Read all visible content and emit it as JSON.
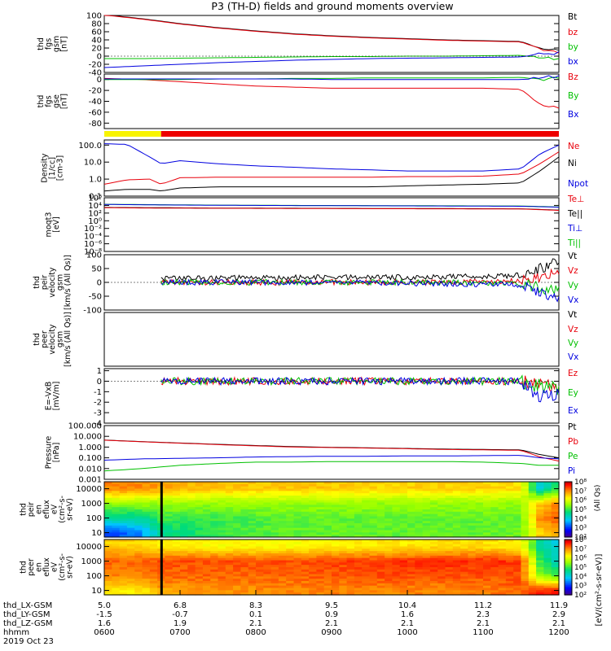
{
  "title": "P3 (TH-D) fields and ground moments overview",
  "chart_data": [
    {
      "type": "line",
      "panel": "fgs-gsm",
      "ylabel": [
        "thd",
        "fgs",
        "gsm",
        "[nT]"
      ],
      "ylim": [
        -40,
        100
      ],
      "yticks": [
        -40,
        -20,
        0,
        20,
        40,
        60,
        80,
        100
      ],
      "legend": [
        {
          "name": "Bt",
          "color": "#000000"
        },
        {
          "name": "bz",
          "color": "#e8000b"
        },
        {
          "name": "by",
          "color": "#00c000"
        },
        {
          "name": "bx",
          "color": "#0000e0"
        }
      ],
      "x": [
        6.0,
        6.5,
        7.0,
        7.5,
        8.0,
        8.5,
        9.0,
        9.5,
        10.0,
        10.5,
        11.0,
        11.5,
        11.75,
        12.0
      ],
      "series": [
        {
          "name": "Bt",
          "values": [
            102,
            92,
            80,
            70,
            62,
            55,
            50,
            46,
            43,
            40,
            38,
            36,
            20,
            12
          ]
        },
        {
          "name": "bz",
          "values": [
            101,
            91,
            79,
            69,
            61,
            54,
            49,
            45,
            42,
            39,
            37,
            35,
            18,
            10
          ]
        },
        {
          "name": "by",
          "values": [
            -6,
            -6,
            -5,
            -4,
            -3,
            -2,
            -1,
            -1,
            0,
            0,
            1,
            2,
            -5,
            -8
          ]
        },
        {
          "name": "bx",
          "values": [
            -28,
            -24,
            -20,
            -16,
            -13,
            -10,
            -8,
            -6,
            -5,
            -4,
            -3,
            -2,
            5,
            8
          ]
        }
      ]
    },
    {
      "type": "line",
      "panel": "fgs-gse",
      "ylabel": [
        "thd",
        "fgs",
        "gse",
        "[nT]"
      ],
      "ylim": [
        -90,
        10
      ],
      "yticks": [
        -80,
        -60,
        -40,
        -20,
        0
      ],
      "legend": [
        {
          "name": "Bz",
          "color": "#e8000b"
        },
        {
          "name": "By",
          "color": "#00c000"
        },
        {
          "name": "Bx",
          "color": "#0000e0"
        }
      ],
      "x": [
        6.0,
        6.5,
        7.0,
        7.5,
        8.0,
        8.5,
        9.0,
        9.5,
        10.0,
        10.5,
        11.0,
        11.5,
        11.75,
        12.0
      ],
      "series": [
        {
          "name": "Bz",
          "values": [
            2,
            0,
            -4,
            -8,
            -12,
            -14,
            -16,
            -16,
            -16,
            -16,
            -16,
            -18,
            -45,
            -55
          ]
        },
        {
          "name": "By",
          "values": [
            0,
            0,
            0,
            1,
            1,
            2,
            2,
            3,
            3,
            3,
            3,
            4,
            0,
            5
          ]
        },
        {
          "name": "Bx",
          "values": [
            1,
            1,
            1,
            1,
            1,
            1,
            0,
            0,
            0,
            0,
            0,
            0,
            2,
            5
          ]
        }
      ]
    },
    {
      "type": "bar",
      "panel": "mode-bar",
      "segments": [
        {
          "from": 6.0,
          "to": 6.75,
          "color": "#f8f400"
        },
        {
          "from": 6.75,
          "to": 12.0,
          "color": "#ee0000"
        }
      ]
    },
    {
      "type": "line",
      "panel": "density",
      "scale": "log",
      "ylabel": [
        "Density",
        "[1/cc]",
        "[cm-3]"
      ],
      "yticklabels": [
        "0.1",
        "1.0",
        "10.0",
        "100.0"
      ],
      "yticks": [
        0.1,
        1,
        10,
        100
      ],
      "ylim": [
        0.1,
        200
      ],
      "legend": [
        {
          "name": "Ne",
          "color": "#e8000b"
        },
        {
          "name": "Ni",
          "color": "#000000"
        },
        {
          "name": "Npot",
          "color": "#0000e0"
        }
      ],
      "x": [
        6.0,
        6.3,
        6.6,
        6.75,
        7.0,
        7.5,
        8.0,
        8.5,
        9.0,
        9.5,
        10.0,
        10.5,
        11.0,
        11.5,
        11.75,
        12.0
      ],
      "series": [
        {
          "name": "Npot",
          "values": [
            120,
            110,
            20,
            8,
            12,
            8,
            6,
            5,
            4,
            3.5,
            3,
            3,
            3,
            4,
            30,
            100
          ]
        },
        {
          "name": "Ne",
          "values": [
            0.5,
            0.9,
            1.0,
            0.5,
            1.2,
            1.3,
            1.3,
            1.3,
            1.3,
            1.3,
            1.4,
            1.4,
            1.5,
            2,
            8,
            40
          ]
        },
        {
          "name": "Ni",
          "values": [
            0.2,
            0.25,
            0.25,
            0.2,
            0.3,
            0.35,
            0.35,
            0.35,
            0.35,
            0.35,
            0.4,
            0.45,
            0.5,
            0.6,
            3,
            20
          ]
        }
      ]
    },
    {
      "type": "line",
      "panel": "temperature",
      "scale": "log",
      "ylabel": [
        "moqt3",
        "[eV]"
      ],
      "yticklabels": [
        "10⁶",
        "10⁴",
        "10²",
        "10⁰",
        "10⁻²",
        "10⁻⁴",
        "10⁻⁶",
        "10⁻⁸"
      ],
      "yticks": [
        1000000,
        10000,
        100,
        1,
        0.01,
        0.0001,
        1e-06,
        1e-08
      ],
      "ylim": [
        1e-08,
        1000000
      ],
      "legend": [
        {
          "name": "Te⊥",
          "color": "#e8000b"
        },
        {
          "name": "Te||",
          "color": "#000000"
        },
        {
          "name": "Ti⊥",
          "color": "#0000e0"
        },
        {
          "name": "Ti||",
          "color": "#00c000"
        }
      ],
      "x": [
        6.0,
        6.75,
        7.5,
        8.5,
        9.5,
        10.5,
        11.5,
        12.0
      ],
      "series": [
        {
          "name": "Ti||",
          "values": [
            20000,
            15000,
            12000,
            10000,
            9000,
            8000,
            7000,
            4000
          ]
        },
        {
          "name": "Ti⊥",
          "values": [
            18000,
            13000,
            11000,
            9000,
            8000,
            7000,
            6000,
            3500
          ]
        },
        {
          "name": "Te||",
          "values": [
            3000,
            2500,
            2000,
            1800,
            1600,
            1500,
            1300,
            600
          ]
        },
        {
          "name": "Te⊥",
          "values": [
            2500,
            2000,
            1800,
            1600,
            1400,
            1300,
            1200,
            500
          ]
        }
      ]
    },
    {
      "type": "line",
      "panel": "peir-velocity",
      "ylabel": [
        "thd",
        "peir",
        "velocity",
        "gsm",
        "[km/s (All Qs)]"
      ],
      "ylim": [
        -100,
        100
      ],
      "yticks": [
        -100,
        -50,
        0,
        50,
        100
      ],
      "legend": [
        {
          "name": "Vt",
          "color": "#000000"
        },
        {
          "name": "Vz",
          "color": "#e8000b"
        },
        {
          "name": "Vy",
          "color": "#00c000"
        },
        {
          "name": "Vx",
          "color": "#0000e0"
        }
      ],
      "x": [
        6.75,
        7.5,
        8.5,
        9.5,
        10.5,
        11.5,
        11.75,
        12.0
      ],
      "series": [
        {
          "name": "Vt",
          "values": [
            15,
            15,
            17,
            18,
            20,
            25,
            50,
            80
          ]
        },
        {
          "name": "Vz",
          "values": [
            0,
            0,
            0,
            0,
            0,
            5,
            20,
            30
          ]
        },
        {
          "name": "Vy",
          "values": [
            0,
            0,
            0,
            0,
            0,
            -5,
            -20,
            -30
          ]
        },
        {
          "name": "Vx",
          "values": [
            0,
            0,
            0,
            0,
            -5,
            -10,
            -40,
            -60
          ]
        }
      ]
    },
    {
      "type": "line",
      "panel": "peer-velocity",
      "ylabel": [
        "thd",
        "peer",
        "velocity",
        "gsm",
        "[km/s (All Qs)]"
      ],
      "legend": [
        {
          "name": "Vt",
          "color": "#000000"
        },
        {
          "name": "Vz",
          "color": "#e8000b"
        },
        {
          "name": "Vy",
          "color": "#00c000"
        },
        {
          "name": "Vx",
          "color": "#0000e0"
        }
      ],
      "series": []
    },
    {
      "type": "line",
      "panel": "e-field",
      "ylabel": [
        "E=-VxB",
        "[mV/m]"
      ],
      "ylim": [
        -4,
        1.2
      ],
      "yticks": [
        -4,
        -3,
        -2,
        -1,
        0,
        1
      ],
      "legend": [
        {
          "name": "Ez",
          "color": "#e8000b"
        },
        {
          "name": "Ey",
          "color": "#00c000"
        },
        {
          "name": "Ex",
          "color": "#0000e0"
        }
      ],
      "x": [
        6.75,
        7.5,
        8.5,
        9.5,
        10.5,
        11.5,
        11.75,
        12.0
      ],
      "series": [
        {
          "name": "Ez",
          "values": [
            0,
            0,
            0,
            0,
            0,
            0,
            -0.3,
            -0.5
          ]
        },
        {
          "name": "Ey",
          "values": [
            0,
            0,
            0,
            0,
            0,
            0,
            -0.5,
            -0.8
          ]
        },
        {
          "name": "Ex",
          "values": [
            0,
            0,
            0,
            0,
            0,
            0,
            -1.5,
            -1.0
          ]
        }
      ]
    },
    {
      "type": "line",
      "panel": "pressure",
      "scale": "log",
      "ylabel": [
        "Pressure",
        "[nPa]"
      ],
      "yticklabels": [
        "0.001",
        "0.010",
        "0.100",
        "1.000",
        "10.000",
        "100.000"
      ],
      "yticks": [
        0.001,
        0.01,
        0.1,
        1,
        10,
        100
      ],
      "ylim": [
        0.001,
        100
      ],
      "legend": [
        {
          "name": "Pt",
          "color": "#000000"
        },
        {
          "name": "Pb",
          "color": "#e8000b"
        },
        {
          "name": "Pe",
          "color": "#00c000"
        },
        {
          "name": "Pi",
          "color": "#0000e0"
        }
      ],
      "x": [
        6.0,
        6.5,
        7.0,
        7.5,
        8.0,
        8.5,
        9.0,
        9.5,
        10.0,
        10.5,
        11.0,
        11.5,
        11.75,
        12.0
      ],
      "series": [
        {
          "name": "Pt",
          "values": [
            4.5,
            3.2,
            2.4,
            1.8,
            1.4,
            1.1,
            0.95,
            0.85,
            0.75,
            0.65,
            0.6,
            0.55,
            0.2,
            0.1
          ]
        },
        {
          "name": "Pb",
          "values": [
            4.4,
            3.1,
            2.3,
            1.7,
            1.3,
            1.0,
            0.9,
            0.8,
            0.7,
            0.6,
            0.55,
            0.5,
            0.12,
            0.05
          ]
        },
        {
          "name": "Pe",
          "values": [
            0.006,
            0.01,
            0.02,
            0.03,
            0.04,
            0.04,
            0.045,
            0.045,
            0.045,
            0.045,
            0.04,
            0.03,
            0.02,
            0.02
          ]
        },
        {
          "name": "Pi",
          "values": [
            0.06,
            0.08,
            0.09,
            0.1,
            0.12,
            0.13,
            0.14,
            0.14,
            0.15,
            0.15,
            0.16,
            0.17,
            0.1,
            0.08
          ]
        }
      ]
    },
    {
      "type": "heatmap",
      "panel": "peir-eflux",
      "scale": "log",
      "ylabel": [
        "thd",
        "peir",
        "en",
        "eflux",
        "eV",
        "(cm²-s-",
        "sr-eV)"
      ],
      "yticks": [
        10,
        100,
        1000,
        10000
      ],
      "yticklabels": [
        "10",
        "100",
        "1000",
        "10000"
      ],
      "ylim": [
        5,
        30000
      ],
      "colorbar": {
        "ticklabels": [
          "10²",
          "10³",
          "10⁴",
          "10⁵",
          "10⁶",
          "10⁷",
          "10⁸"
        ],
        "range": [
          100,
          100000000
        ]
      },
      "x": [
        6.0,
        6.5,
        6.75,
        7.5,
        8.5,
        9.5,
        10.5,
        11.0,
        11.5,
        11.75,
        12.0
      ],
      "bands": [
        {
          "energy": 10000,
          "values": [
            7.0,
            7.0,
            6.8,
            6.6,
            6.6,
            6.5,
            6.5,
            6.5,
            6.4,
            4.0,
            5.0
          ]
        },
        {
          "energy": 1000,
          "values": [
            5.5,
            5.5,
            5.5,
            5.5,
            5.5,
            5.5,
            5.5,
            5.5,
            5.5,
            6.5,
            7.0
          ]
        },
        {
          "energy": 100,
          "values": [
            4.5,
            4.5,
            5.0,
            5.0,
            5.2,
            5.2,
            5.2,
            5.2,
            5.2,
            7.0,
            7.2
          ]
        },
        {
          "energy": 10,
          "values": [
            3.0,
            3.5,
            4.5,
            5.0,
            5.2,
            5.2,
            5.2,
            5.2,
            5.3,
            6.5,
            6.8
          ]
        }
      ]
    },
    {
      "type": "heatmap",
      "panel": "peer-eflux",
      "scale": "log",
      "ylabel": [
        "thd",
        "peer",
        "en",
        "eflux",
        "eV",
        "(cm²-s-",
        "sr-eV)"
      ],
      "yticks": [
        10,
        100,
        1000,
        10000
      ],
      "yticklabels": [
        "10",
        "100",
        "1000",
        "10000"
      ],
      "ylim": [
        5,
        30000
      ],
      "colorbar": {
        "ticklabels": [
          "10²",
          "10³",
          "10⁴",
          "10⁵",
          "10⁶",
          "10⁷",
          "10⁸"
        ],
        "range": [
          100,
          100000000
        ]
      },
      "x": [
        6.0,
        6.5,
        6.75,
        7.5,
        8.5,
        9.5,
        10.5,
        11.0,
        11.5,
        11.75,
        12.0
      ],
      "bands": [
        {
          "energy": 10000,
          "values": [
            6.5,
            6.5,
            6.3,
            6.2,
            6.2,
            6.3,
            6.4,
            6.4,
            6.3,
            4.5,
            4.0
          ]
        },
        {
          "energy": 1000,
          "values": [
            7.2,
            7.2,
            7.3,
            7.3,
            7.3,
            7.4,
            7.5,
            7.5,
            7.4,
            5.0,
            4.0
          ]
        },
        {
          "energy": 100,
          "values": [
            7.0,
            7.0,
            7.2,
            7.2,
            7.2,
            7.3,
            7.3,
            7.3,
            7.3,
            5.5,
            5.0
          ]
        },
        {
          "energy": 10,
          "values": [
            6.3,
            6.3,
            6.8,
            6.9,
            7.0,
            7.0,
            7.0,
            7.0,
            7.2,
            7.5,
            7.6
          ]
        }
      ]
    }
  ],
  "colorbar_label": "[eV/(cm²-s-sr-eV)]",
  "colorbar_side_label": "(All Qs)",
  "xaxis": {
    "ticks": [
      6,
      7,
      8,
      9,
      10,
      11,
      12
    ],
    "rows": [
      {
        "label": "thd_LX-GSM",
        "values": [
          "5.0",
          "6.8",
          "8.3",
          "9.5",
          "10.4",
          "11.2",
          "11.9"
        ]
      },
      {
        "label": "thd_LY-GSM",
        "values": [
          "-1.5",
          "-0.7",
          "0.1",
          "0.9",
          "1.6",
          "2.3",
          "2.9"
        ]
      },
      {
        "label": "thd_LZ-GSM",
        "values": [
          "1.6",
          "1.9",
          "2.1",
          "2.1",
          "2.1",
          "2.1",
          "2.1"
        ]
      },
      {
        "label": "hhmm",
        "values": [
          "0600",
          "0700",
          "0800",
          "0900",
          "1000",
          "1100",
          "1200"
        ]
      }
    ],
    "date": "2019 Oct 23"
  }
}
